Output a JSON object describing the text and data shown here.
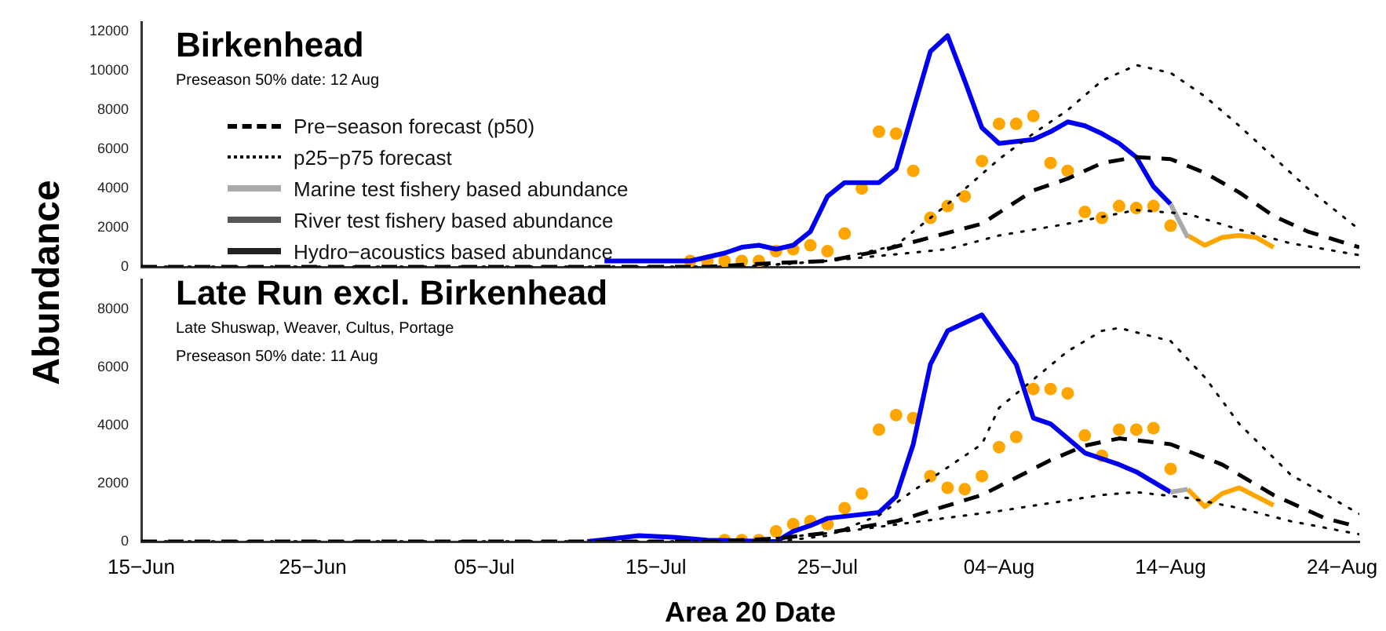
{
  "chart_data": [
    {
      "type": "line",
      "title": "Birkenhead",
      "annotations": [
        "Preseason 50% date: 12 Aug"
      ],
      "ylabel": "Abundance",
      "legend": "left",
      "grid": false,
      "tick_labels": "y",
      "xlim": [
        "--06-15",
        "--08-25"
      ],
      "xticks": [
        {
          "value": "--06-15",
          "label": null
        },
        {
          "value": "--06-25",
          "label": null
        },
        {
          "value": "--07-05",
          "label": null
        },
        {
          "value": "--07-15",
          "label": null
        },
        {
          "value": "--07-25",
          "label": null
        },
        {
          "value": "--08-04",
          "label": null
        },
        {
          "value": "--08-14",
          "label": null
        },
        {
          "value": "--08-24",
          "label": null
        }
      ],
      "ylim": [
        0,
        12500
      ],
      "yticks": [
        0,
        2000,
        4000,
        6000,
        8000,
        10000,
        12000
      ],
      "series": [
        {
          "name": "Pre−season forecast (p50)",
          "color": "#000000",
          "line_style": "dashed",
          "marker": "none",
          "x": [
            "--06-15",
            "--07-10",
            "--07-18",
            "--07-22",
            "--07-25",
            "--07-28",
            "--07-31",
            "--08-03",
            "--08-06",
            "--08-08",
            "--08-10",
            "--08-12",
            "--08-14",
            "--08-16",
            "--08-18",
            "--08-20",
            "--08-22",
            "--08-25"
          ],
          "values": [
            0,
            0,
            0,
            200,
            300,
            800,
            1500,
            2200,
            3900,
            4500,
            5300,
            5600,
            5500,
            4800,
            3800,
            2600,
            1800,
            1000
          ]
        },
        {
          "name": "p25−p75 forecast",
          "color": "#000000",
          "line_style": "dotted",
          "marker": "none",
          "x": [
            "--06-15",
            "--07-20",
            "--07-25",
            "--08-01",
            "--08-04",
            "--08-08",
            "--08-12",
            "--08-15",
            "--08-18",
            "--08-21",
            "--08-25"
          ],
          "values": [
            0,
            0,
            300,
            900,
            1600,
            2200,
            2900,
            2700,
            1900,
            1200,
            600
          ]
        },
        {
          "color": "#000000",
          "line_style": "dotted",
          "marker": "none",
          "x": [
            "--06-15",
            "--07-20",
            "--07-25",
            "--07-29",
            "--08-01",
            "--08-04",
            "--08-06",
            "--08-08",
            "--08-10",
            "--08-12",
            "--08-14",
            "--08-16",
            "--08-18",
            "--08-20",
            "--08-22",
            "--08-25"
          ],
          "values": [
            0,
            0,
            300,
            1100,
            3200,
            5500,
            6800,
            8000,
            9500,
            10300,
            9900,
            8700,
            7200,
            5600,
            4000,
            1900
          ]
        },
        {
          "name": "Marine test fishery based abundance",
          "color": "#aaaaaa",
          "line_style": "solid",
          "marker": "none",
          "x": [
            "--08-14",
            "--08-15"
          ],
          "values": [
            3200,
            1500
          ]
        },
        {
          "name": "River test fishery based abundance",
          "color": "#555555",
          "line_style": "solid",
          "marker": "none"
        },
        {
          "name": "Hydro−acoustics based abundance",
          "color": "#222222",
          "line_style": "solid",
          "marker": "none"
        },
        {
          "color": "#0000ee",
          "line_style": "solid",
          "marker": "none",
          "x": [
            "--07-12",
            "--07-15",
            "--07-17",
            "--07-19",
            "--07-20",
            "--07-21",
            "--07-22",
            "--07-23",
            "--07-24",
            "--07-25",
            "--07-26",
            "--07-28",
            "--07-29",
            "--07-31",
            "--08-01",
            "--08-02",
            "--08-03",
            "--08-04",
            "--08-06",
            "--08-07",
            "--08-08",
            "--08-09",
            "--08-10",
            "--08-11",
            "--08-12",
            "--08-13",
            "--08-14"
          ],
          "values": [
            300,
            300,
            300,
            700,
            1000,
            1100,
            900,
            1100,
            1800,
            3600,
            4300,
            4300,
            5000,
            11000,
            11800,
            9500,
            7100,
            6300,
            6500,
            6900,
            7400,
            7200,
            6800,
            6300,
            5600,
            4100,
            3200
          ]
        },
        {
          "color": "#ffa500",
          "line_style": "solid",
          "marker": "none",
          "x": [
            "--08-15",
            "--08-16",
            "--08-17",
            "--08-18",
            "--08-19",
            "--08-20"
          ],
          "values": [
            1600,
            1100,
            1500,
            1600,
            1500,
            1000
          ]
        },
        {
          "type": "scatter",
          "color": "#ffa500",
          "marker": "circle",
          "x": [
            "--07-17",
            "--07-18",
            "--07-19",
            "--07-20",
            "--07-21",
            "--07-22",
            "--07-23",
            "--07-24",
            "--07-25",
            "--07-26",
            "--07-27",
            "--07-28",
            "--07-29",
            "--07-30",
            "--07-31",
            "--08-01",
            "--08-02",
            "--08-03",
            "--08-04",
            "--08-05",
            "--08-06",
            "--08-07",
            "--08-08",
            "--08-09",
            "--08-10",
            "--08-11",
            "--08-12",
            "--08-13",
            "--08-14"
          ],
          "values": [
            300,
            300,
            300,
            300,
            300,
            800,
            900,
            1100,
            800,
            1700,
            4000,
            6900,
            6800,
            4900,
            2500,
            3100,
            3600,
            5400,
            7300,
            7300,
            7700,
            5300,
            4900,
            2800,
            2500,
            3100,
            3000,
            3100,
            2100
          ]
        }
      ]
    },
    {
      "type": "line",
      "title": "Late Run excl. Birkenhead",
      "subtitle": "Late Shuswap, Weaver, Cultus, Portage",
      "annotations": [
        "Preseason 50% date: 11 Aug"
      ],
      "xlabel": "Area 20 Date",
      "legend": false,
      "grid": false,
      "xlim": [
        "--06-15",
        "--08-25"
      ],
      "xticks": [
        {
          "value": "--06-15",
          "label": "15−Jun"
        },
        {
          "value": "--06-25",
          "label": "25−Jun"
        },
        {
          "value": "--07-05",
          "label": "05−Jul"
        },
        {
          "value": "--07-15",
          "label": "15−Jul"
        },
        {
          "value": "--07-25",
          "label": "25−Jul"
        },
        {
          "value": "--08-04",
          "label": "04−Aug"
        },
        {
          "value": "--08-14",
          "label": "14−Aug"
        },
        {
          "value": "--08-24",
          "label": "24−Aug"
        }
      ],
      "ylim": [
        0,
        9000
      ],
      "yticks": [
        0,
        2000,
        4000,
        6000,
        8000
      ],
      "series": [
        {
          "color": "#000000",
          "line_style": "dashed",
          "marker": "none",
          "x": [
            "--06-15",
            "--07-18",
            "--07-22",
            "--07-25",
            "--07-29",
            "--08-03",
            "--08-07",
            "--08-09",
            "--08-11",
            "--08-14",
            "--08-17",
            "--08-20",
            "--08-23",
            "--08-25"
          ],
          "values": [
            0,
            0,
            100,
            300,
            700,
            1600,
            2800,
            3300,
            3550,
            3350,
            2650,
            1600,
            800,
            500
          ]
        },
        {
          "color": "#000000",
          "line_style": "dotted",
          "marker": "none",
          "x": [
            "--06-15",
            "--07-20",
            "--07-26",
            "--08-04",
            "--08-10",
            "--08-12",
            "--08-15",
            "--08-18",
            "--08-21",
            "--08-25"
          ],
          "values": [
            0,
            0,
            350,
            1050,
            1600,
            1700,
            1500,
            1150,
            700,
            250
          ]
        },
        {
          "color": "#000000",
          "line_style": "dotted",
          "marker": "none",
          "x": [
            "--06-15",
            "--07-22",
            "--07-25",
            "--07-28",
            "--07-30",
            "--08-03",
            "--08-04",
            "--08-08",
            "--08-10",
            "--08-11",
            "--08-14",
            "--08-16",
            "--08-18",
            "--08-21",
            "--08-25"
          ],
          "values": [
            0,
            0,
            200,
            900,
            1750,
            3350,
            4600,
            6550,
            7250,
            7350,
            6900,
            5650,
            4050,
            2300,
            950
          ]
        },
        {
          "color": "#aaaaaa",
          "line_style": "solid",
          "marker": "none",
          "x": [
            "--08-14",
            "--08-15"
          ],
          "values": [
            1700,
            1800
          ]
        },
        {
          "color": "#0000ee",
          "line_style": "solid",
          "marker": "none",
          "x": [
            "--07-11",
            "--07-14",
            "--07-16",
            "--07-18",
            "--07-22",
            "--07-23",
            "--07-24",
            "--07-25",
            "--07-28",
            "--07-29",
            "--07-30",
            "--07-31",
            "--08-01",
            "--08-03",
            "--08-04",
            "--08-05",
            "--08-06",
            "--08-07",
            "--08-08",
            "--08-09",
            "--08-10",
            "--08-11",
            "--08-12",
            "--08-13",
            "--08-14"
          ],
          "values": [
            0,
            200,
            150,
            50,
            0,
            350,
            550,
            800,
            1000,
            1550,
            3350,
            6100,
            7250,
            7800,
            6950,
            6100,
            4250,
            4050,
            3550,
            3050,
            2850,
            2650,
            2400,
            2050,
            1700
          ]
        },
        {
          "color": "#ffa500",
          "line_style": "solid",
          "marker": "none",
          "x": [
            "--08-15",
            "--08-16",
            "--08-17",
            "--08-18",
            "--08-19",
            "--08-20"
          ],
          "values": [
            1800,
            1200,
            1650,
            1850,
            1550,
            1250
          ]
        },
        {
          "type": "scatter",
          "color": "#ffa500",
          "marker": "circle",
          "x": [
            "--07-19",
            "--07-20",
            "--07-21",
            "--07-22",
            "--07-23",
            "--07-24",
            "--07-25",
            "--07-26",
            "--07-27",
            "--07-28",
            "--07-29",
            "--07-30",
            "--07-31",
            "--08-01",
            "--08-02",
            "--08-03",
            "--08-04",
            "--08-05",
            "--08-06",
            "--08-07",
            "--08-08",
            "--08-09",
            "--08-10",
            "--08-11",
            "--08-12",
            "--08-13",
            "--08-14"
          ],
          "values": [
            50,
            50,
            50,
            350,
            600,
            700,
            600,
            1150,
            1650,
            3850,
            4350,
            4250,
            2250,
            1850,
            1800,
            2250,
            3250,
            3600,
            5250,
            5250,
            5100,
            3650,
            2950,
            3850,
            3850,
            3900,
            2500
          ]
        }
      ]
    }
  ]
}
